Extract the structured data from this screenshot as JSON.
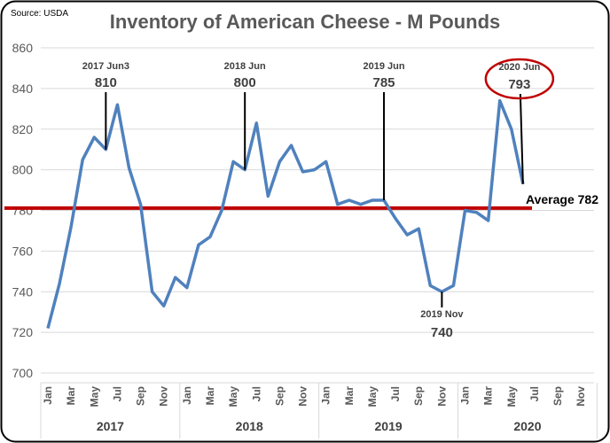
{
  "source": "Source: USDA",
  "chart_data": {
    "type": "line",
    "title": "Inventory of American Cheese - M Pounds",
    "xlabel": "",
    "ylabel": "",
    "ylim": [
      700,
      860
    ],
    "yticks": [
      700,
      720,
      740,
      760,
      780,
      800,
      820,
      840,
      860
    ],
    "grid": true,
    "months": [
      "Jan",
      "Mar",
      "May",
      "Jul",
      "Sep",
      "Nov"
    ],
    "years": [
      "2017",
      "2018",
      "2019",
      "2020"
    ],
    "series": [
      {
        "color": "#4f81bd",
        "values": [
          722,
          744,
          772,
          805,
          816,
          810,
          832,
          801,
          783,
          740,
          733,
          747,
          742,
          763,
          767,
          780,
          804,
          800,
          823,
          787,
          804,
          812,
          799,
          800,
          804,
          783,
          785,
          783,
          785,
          785,
          776,
          768,
          771,
          743,
          740,
          743,
          780,
          779,
          775,
          834,
          820,
          793
        ]
      }
    ],
    "average": {
      "value": 782,
      "label": "Average 782",
      "color": "#c00000"
    },
    "annotations": [
      {
        "index": 5,
        "label": "2017 Jun3",
        "value_label": "810"
      },
      {
        "index": 17,
        "label": "2018 Jun",
        "value_label": "800"
      },
      {
        "index": 29,
        "label": "2019 Jun",
        "value_label": "785"
      },
      {
        "index": 34,
        "label": "2019 Nov",
        "value_label": "740"
      },
      {
        "index": 41,
        "label": "2020 Jun",
        "value_label": "793",
        "circled": true
      }
    ]
  }
}
